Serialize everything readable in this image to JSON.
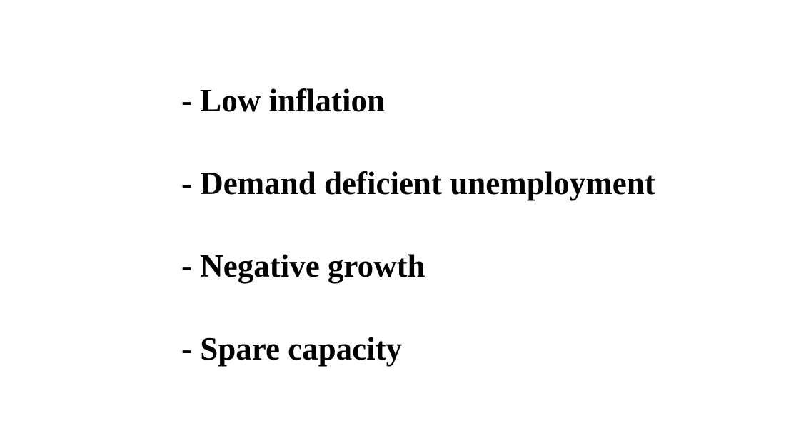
{
  "bullets": [
    "- Low inflation",
    "- Demand deficient unemployment",
    "- Negative growth",
    "- Spare capacity"
  ]
}
